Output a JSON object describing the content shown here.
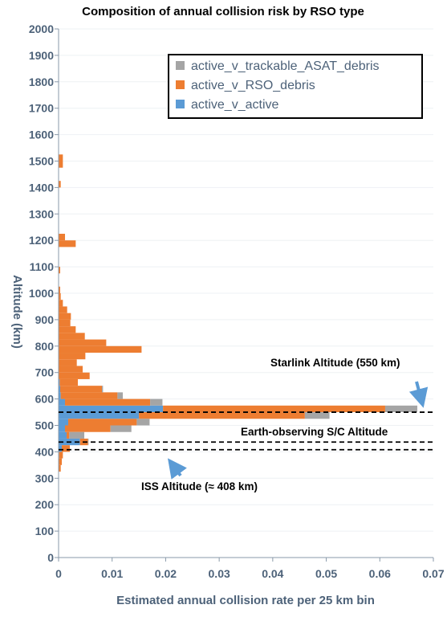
{
  "chart_data": {
    "type": "bar",
    "orientation": "horizontal",
    "stacked": true,
    "title": "Composition of annual collision risk by RSO type",
    "xlabel": "Estimated annual collision rate per 25 km bin",
    "ylabel": "Altitude (km)",
    "xlim": [
      0,
      0.07
    ],
    "ylim": [
      0,
      2000
    ],
    "bin_width_km": 25,
    "x_ticks": [
      "0",
      "0.01",
      "0.02",
      "0.03",
      "0.04",
      "0.05",
      "0.06",
      "0.07"
    ],
    "y_ticks": [
      "0",
      "100",
      "200",
      "300",
      "400",
      "500",
      "600",
      "700",
      "800",
      "900",
      "1000",
      "1100",
      "1200",
      "1300",
      "1400",
      "1500",
      "1600",
      "1700",
      "1800",
      "1900",
      "2000"
    ],
    "legend_position": "top-right",
    "series": [
      {
        "name": "active_v_active",
        "color": "#5b9bd5",
        "bins": [
          {
            "y0": 375,
            "v": 0.0001
          },
          {
            "y0": 400,
            "v": 0.0006
          },
          {
            "y0": 425,
            "v": 0.004
          },
          {
            "y0": 450,
            "v": 0.0015
          },
          {
            "y0": 475,
            "v": 0.0012
          },
          {
            "y0": 500,
            "v": 0.0018
          },
          {
            "y0": 525,
            "v": 0.015
          },
          {
            "y0": 550,
            "v": 0.0195
          },
          {
            "y0": 575,
            "v": 0.0012
          },
          {
            "y0": 600,
            "v": 0.0004
          },
          {
            "y0": 625,
            "v": 0.0003
          },
          {
            "y0": 650,
            "v": 0.0002
          }
        ]
      },
      {
        "name": "active_v_RSO_debris",
        "color": "#ed7d31",
        "bins": [
          {
            "y0": 325,
            "v": 0.0004
          },
          {
            "y0": 350,
            "v": 0.0006
          },
          {
            "y0": 375,
            "v": 0.0007
          },
          {
            "y0": 400,
            "v": 0.0015
          },
          {
            "y0": 425,
            "v": 0.0015
          },
          {
            "y0": 450,
            "v": 0.0005
          },
          {
            "y0": 475,
            "v": 0.0085
          },
          {
            "y0": 500,
            "v": 0.0128
          },
          {
            "y0": 525,
            "v": 0.031
          },
          {
            "y0": 550,
            "v": 0.0415
          },
          {
            "y0": 575,
            "v": 0.0159
          },
          {
            "y0": 600,
            "v": 0.0106
          },
          {
            "y0": 625,
            "v": 0.0078
          },
          {
            "y0": 650,
            "v": 0.0034
          },
          {
            "y0": 675,
            "v": 0.0058
          },
          {
            "y0": 700,
            "v": 0.0045
          },
          {
            "y0": 725,
            "v": 0.0034
          },
          {
            "y0": 750,
            "v": 0.005
          },
          {
            "y0": 775,
            "v": 0.0155
          },
          {
            "y0": 800,
            "v": 0.0089
          },
          {
            "y0": 825,
            "v": 0.0049
          },
          {
            "y0": 850,
            "v": 0.0032
          },
          {
            "y0": 875,
            "v": 0.0022
          },
          {
            "y0": 900,
            "v": 0.0023
          },
          {
            "y0": 925,
            "v": 0.0016
          },
          {
            "y0": 950,
            "v": 0.0008
          },
          {
            "y0": 975,
            "v": 0.0004
          },
          {
            "y0": 1000,
            "v": 0.0003
          },
          {
            "y0": 1075,
            "v": 0.0003
          },
          {
            "y0": 1175,
            "v": 0.0032
          },
          {
            "y0": 1200,
            "v": 0.0012
          },
          {
            "y0": 1400,
            "v": 0.0004
          },
          {
            "y0": 1475,
            "v": 0.0008
          },
          {
            "y0": 1500,
            "v": 0.0008
          }
        ]
      },
      {
        "name": "active_v_trackable_ASAT_debris",
        "color": "#a5a5a5",
        "bins": [
          {
            "y0": 425,
            "v": 0.0001
          },
          {
            "y0": 450,
            "v": 0.0028
          },
          {
            "y0": 475,
            "v": 0.0039
          },
          {
            "y0": 500,
            "v": 0.0024
          },
          {
            "y0": 525,
            "v": 0.0046
          },
          {
            "y0": 550,
            "v": 0.006
          },
          {
            "y0": 575,
            "v": 0.0023
          },
          {
            "y0": 600,
            "v": 0.001
          },
          {
            "y0": 625,
            "v": 0.0002
          }
        ]
      }
    ],
    "reference_lines": [
      {
        "y": 550
      },
      {
        "y": 437
      },
      {
        "y": 408
      }
    ],
    "annotations": [
      {
        "text": "Starlink Altitude (550 km)",
        "arrow_to": {
          "x": 0.068,
          "y": 550
        }
      },
      {
        "text": "Earth-observing S/C Altitude"
      },
      {
        "text": "ISS Altitude (≈ 408 km)",
        "arrow_to": {
          "x": 0.0205,
          "y": 408
        }
      }
    ]
  }
}
